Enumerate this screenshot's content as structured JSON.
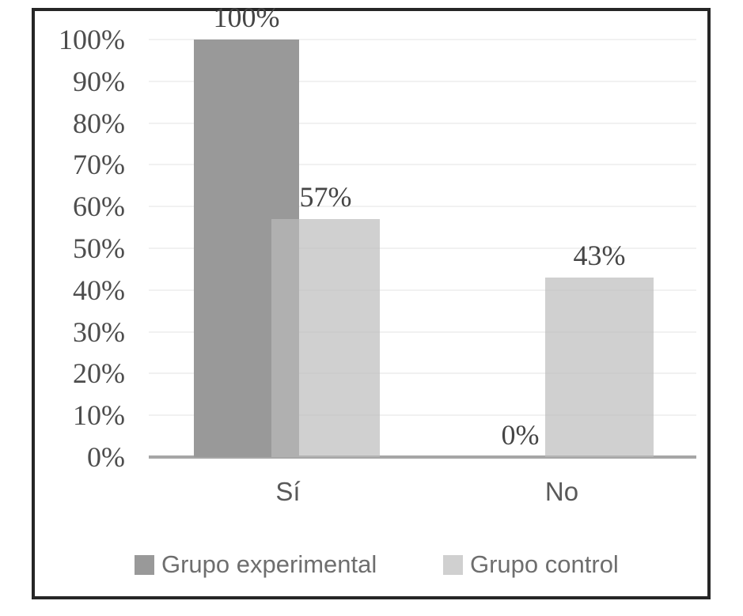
{
  "figure": {
    "background": "#ffffff",
    "border_color": "#262626"
  },
  "chart_data": {
    "type": "bar",
    "title": "",
    "xlabel": "",
    "ylabel": "",
    "categories": [
      "Sí",
      "No"
    ],
    "series": [
      {
        "name": "Grupo experimental",
        "values": [
          100,
          0
        ],
        "labels": [
          "100%",
          "0%"
        ],
        "color": "#999999"
      },
      {
        "name": "Grupo control",
        "values": [
          57,
          43
        ],
        "labels": [
          "57%",
          "43%"
        ],
        "color": "#d0d0d0",
        "fill_rgba": "rgba(187,187,187,0.69)"
      }
    ],
    "y_ticks": [
      "0%",
      "10%",
      "20%",
      "30%",
      "40%",
      "50%",
      "60%",
      "70%",
      "80%",
      "90%",
      "100%"
    ],
    "ylim": [
      0,
      100
    ],
    "grid": true,
    "gridline_color": "#f1f1f1",
    "axis_line_color": "#a6a6a6",
    "legend_position": "bottom"
  }
}
